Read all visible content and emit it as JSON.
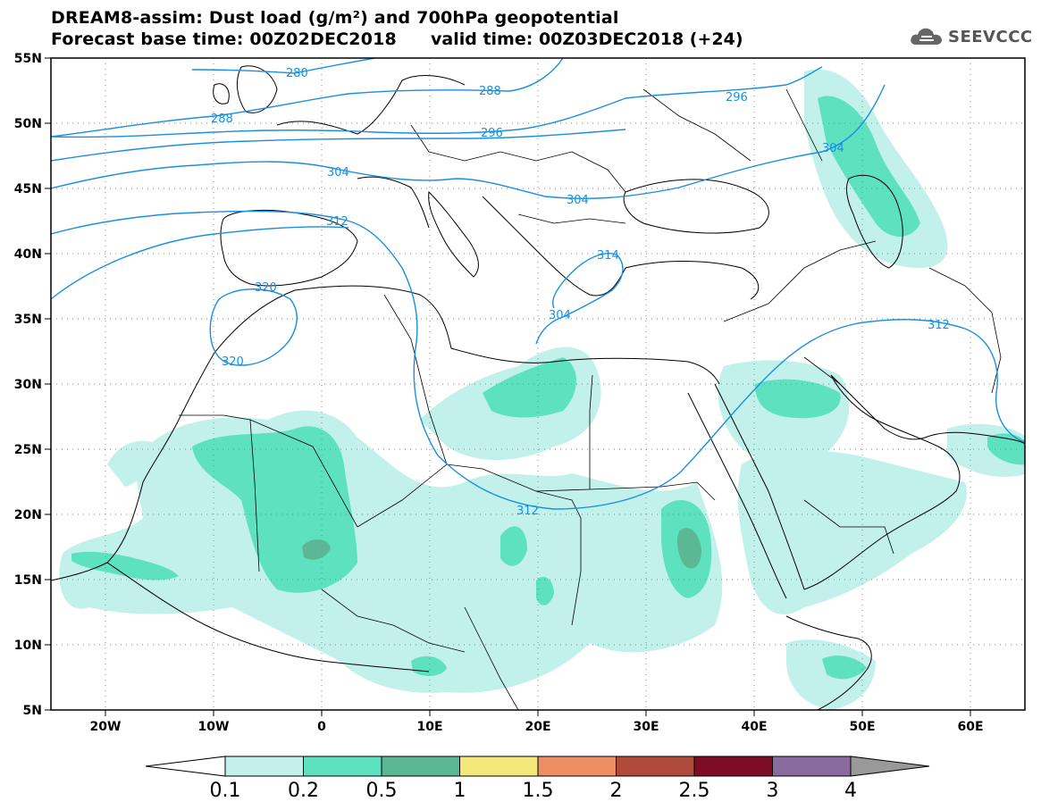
{
  "title": {
    "line1": "DREAM8-assim: Dust load (g/m²) and 700hPa geopotential",
    "line2": "Forecast base time: 00Z02DEC2018",
    "valid": "valid time: 00Z03DEC2018 (+24)"
  },
  "logo": {
    "text": "SEEVCCC",
    "icon": "cloud-logo-icon"
  },
  "axes": {
    "lat_ticks": [
      "55N",
      "50N",
      "45N",
      "40N",
      "35N",
      "30N",
      "25N",
      "20N",
      "15N",
      "10N",
      "5N"
    ],
    "lon_ticks": [
      "20W",
      "10W",
      "0",
      "10E",
      "20E",
      "30E",
      "40E",
      "50E",
      "60E"
    ],
    "lon_range": [
      -25,
      65
    ],
    "lat_range": [
      5,
      55
    ],
    "grid": "dotted"
  },
  "contours": {
    "color": "#1a8fe0",
    "labels": [
      "280",
      "288",
      "288",
      "296",
      "296",
      "304",
      "304",
      "304",
      "304",
      "312",
      "312",
      "312",
      "314",
      "320",
      "320"
    ]
  },
  "colorbar": {
    "colors": [
      "#c1f1ea",
      "#5ee1bf",
      "#5cb795",
      "#f4e87a",
      "#ec8e61",
      "#b04b3b",
      "#7d0c25",
      "#8b6aa0"
    ],
    "labels": [
      "0.1",
      "0.2",
      "0.5",
      "1",
      "1.5",
      "2",
      "2.5",
      "3",
      "4"
    ],
    "left_arrow_color": "#ffffff",
    "right_arrow_color": "#999999"
  }
}
